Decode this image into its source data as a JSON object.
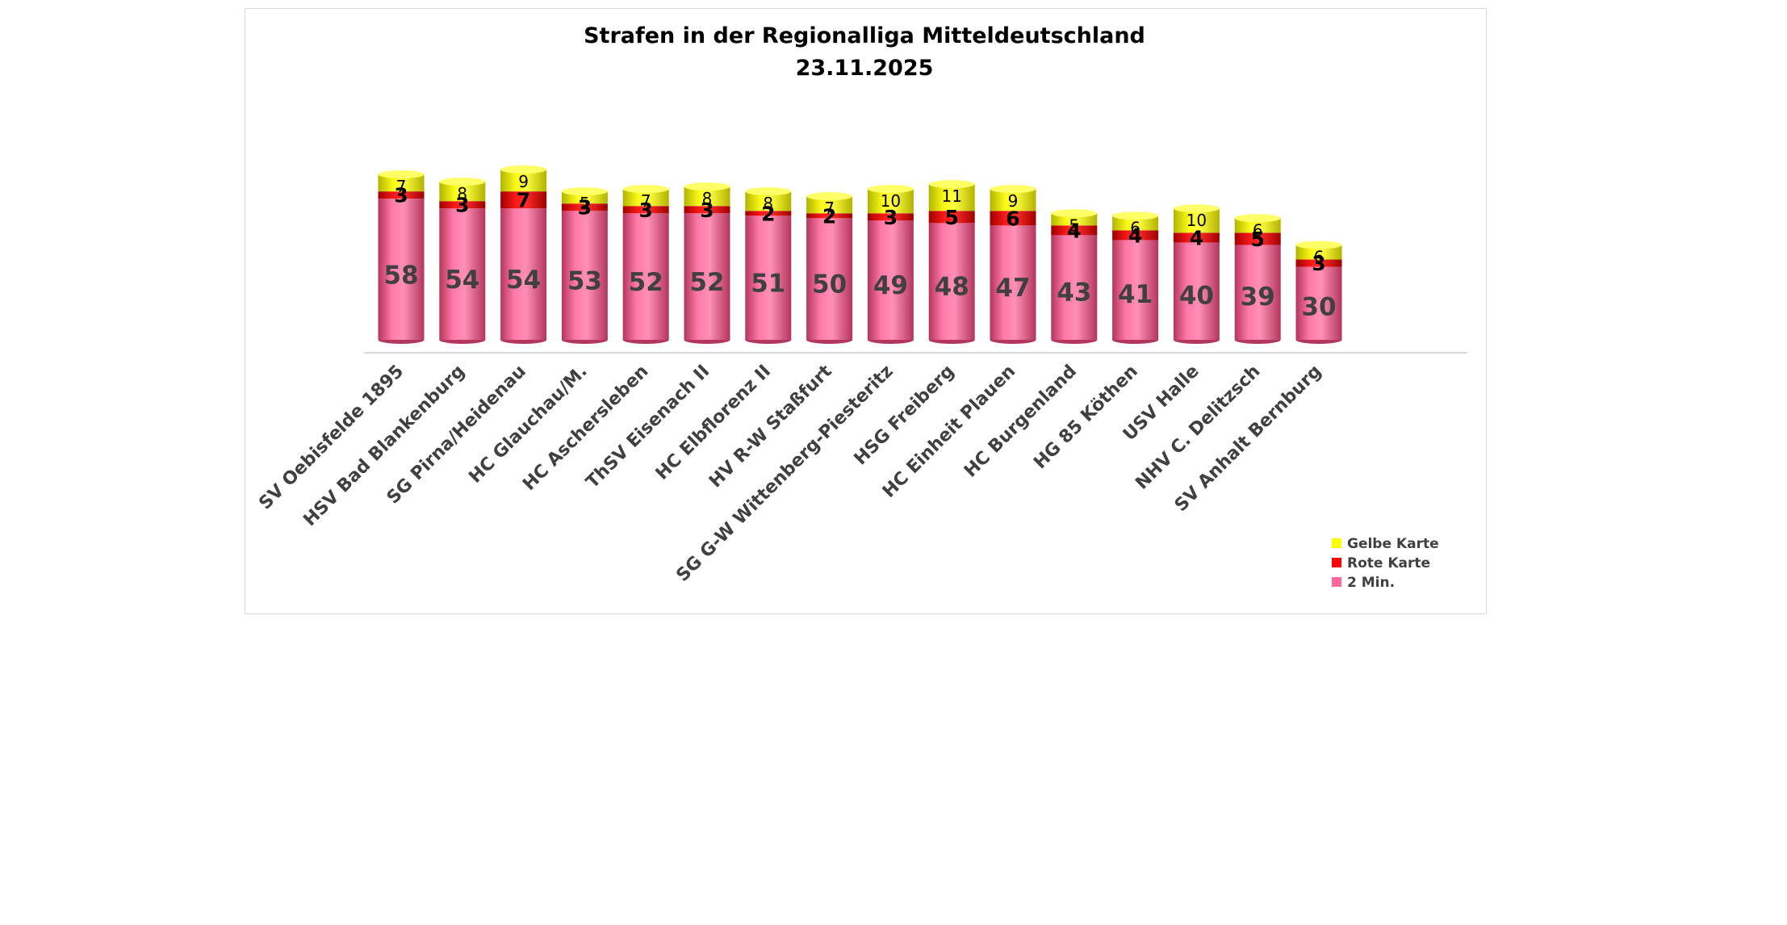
{
  "chart_data": {
    "type": "bar",
    "stacked": true,
    "title": "Strafen in der Regionalliga Mitteldeutschland",
    "subtitle": "23.11.2025",
    "categories": [
      "SV Oebisfelde 1895",
      "HSV Bad Blankenburg",
      "SG Pirna/Heidenau",
      "HC Glauchau/M.",
      "HC Aschersleben",
      "ThSV Eisenach II",
      "HC Elbflorenz II",
      "HV R-W Staßfurt",
      "SG G-W Wittenberg-Piesteritz",
      "HSG Freiberg",
      "HC Einheit Plauen",
      "HC Burgenland",
      "HG 85 Köthen",
      "USV Halle",
      "NHV C. Delitzsch",
      "SV Anhalt Bernburg"
    ],
    "series": [
      {
        "name": "2 Min.",
        "color": "#ff6699",
        "values": [
          58,
          54,
          54,
          53,
          52,
          52,
          51,
          50,
          49,
          48,
          47,
          43,
          41,
          40,
          39,
          30
        ]
      },
      {
        "name": "Rote Karte",
        "color": "#ff0000",
        "values": [
          3,
          3,
          7,
          3,
          3,
          3,
          2,
          2,
          3,
          5,
          6,
          4,
          4,
          4,
          5,
          3
        ]
      },
      {
        "name": "Gelbe Karte",
        "color": "#ffff00",
        "values": [
          7,
          8,
          9,
          5,
          7,
          8,
          8,
          7,
          10,
          11,
          9,
          5,
          6,
          10,
          6,
          6
        ]
      }
    ],
    "legend_order": [
      "Gelbe Karte",
      "Rote Karte",
      "2 Min."
    ],
    "legend_position": "bottom-right",
    "grid": false,
    "bar_shape": "cylinder"
  }
}
